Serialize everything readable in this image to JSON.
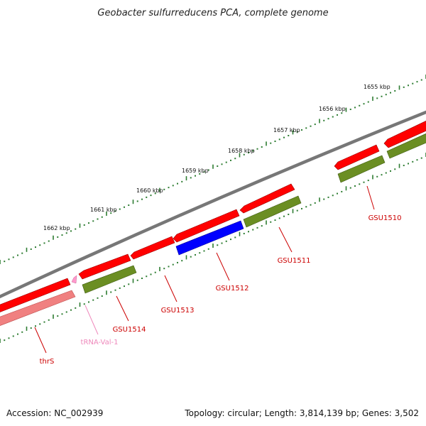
{
  "header": {
    "title": "Geobacter sulfurreducens PCA, complete genome"
  },
  "footer": {
    "accession": "Accession: NC_002939",
    "summary": "Topology: circular; Length: 3,814,139 bp; Genes: 3,502"
  },
  "colors": {
    "forward_gene": "#ff0000",
    "reverse_gene": "#6b8e23",
    "highlight_gene": "#0000ff",
    "pseudo_gene": "#f08080",
    "trna": "#ff99cc",
    "backbone": "#777777",
    "ticks": "#2e7d32",
    "label_red": "#cc0000",
    "label_pink": "#ee88bb"
  },
  "ruler": {
    "labels": [
      "1655 kbp",
      "1656 kbp",
      "1657 kbp",
      "1658 kbp",
      "1659 kbp",
      "1660 kbp",
      "1661 kbp",
      "1662 kbp"
    ]
  },
  "genes": [
    {
      "name": "GSU1510",
      "strand": "reverse",
      "color": "red"
    },
    {
      "name": "GSU1511",
      "strand": "reverse",
      "color": "red"
    },
    {
      "name": "GSU1512",
      "strand": "reverse",
      "color": "red"
    },
    {
      "name": "GSU1513",
      "strand": "forward",
      "color": "red"
    },
    {
      "name": "GSU1514",
      "strand": "reverse",
      "color": "red"
    },
    {
      "name": "tRNA-Val-1",
      "strand": "forward",
      "color": "pink"
    },
    {
      "name": "thrS",
      "strand": "reverse",
      "color": "red"
    }
  ]
}
